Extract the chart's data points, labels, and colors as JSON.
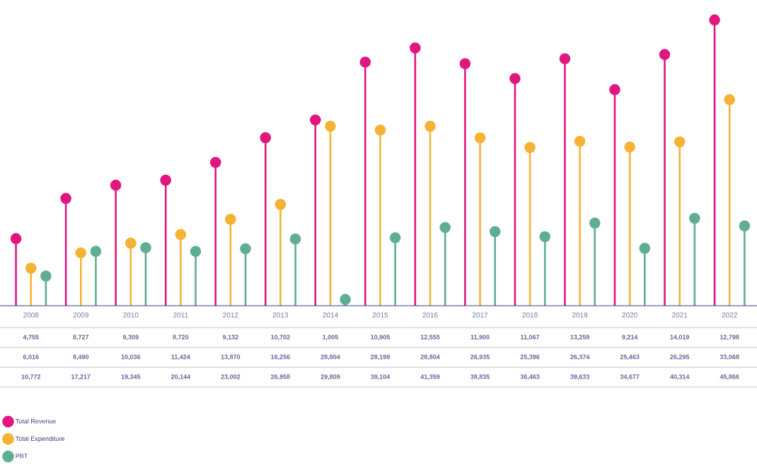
{
  "chart_data": {
    "type": "lollipop",
    "categories": [
      "2008",
      "2009",
      "2010",
      "2011",
      "2012",
      "2013",
      "2014",
      "2015",
      "2016",
      "2017",
      "2018",
      "2019",
      "2020",
      "2021",
      "2022"
    ],
    "series": [
      {
        "name": "Total Revenue",
        "color": "#e0177f",
        "values": [
          10772,
          17217,
          19345,
          20144,
          23002,
          26958,
          29809,
          39104,
          41359,
          38835,
          36463,
          39633,
          34677,
          40314,
          45866
        ],
        "value_labels": [
          "10,772",
          "17,217",
          "19,345",
          "20,144",
          "23,002",
          "26,958",
          "29,809",
          "39,104",
          "41,359",
          "38,835",
          "36,463",
          "39,633",
          "34,677",
          "40,314",
          "45,866"
        ]
      },
      {
        "name": "Total Expenditure",
        "color": "#f5b335",
        "values": [
          6016,
          8490,
          10036,
          11424,
          13870,
          16256,
          28804,
          28199,
          28804,
          26935,
          25396,
          26374,
          25463,
          26295,
          33068
        ],
        "value_labels": [
          "6,016",
          "8,490",
          "10,036",
          "11,424",
          "13,870",
          "16,256",
          "28,804",
          "28,199",
          "28,804",
          "26,935",
          "25,396",
          "26,374",
          "25,463",
          "26,295",
          "33,068"
        ]
      },
      {
        "name": "PBT",
        "color": "#5fae92",
        "values": [
          4755,
          8727,
          9309,
          8720,
          9132,
          10702,
          1005,
          10905,
          12555,
          11900,
          11067,
          13259,
          9214,
          14019,
          12798
        ],
        "value_labels": [
          "4,755",
          "8,727",
          "9,309",
          "8,720",
          "9,132",
          "10,702",
          "1,005",
          "10,905",
          "12,555",
          "11,900",
          "11,067",
          "13,259",
          "9,214",
          "14,019",
          "12,798"
        ]
      }
    ],
    "marker": "circle",
    "legend": "bottom left"
  }
}
